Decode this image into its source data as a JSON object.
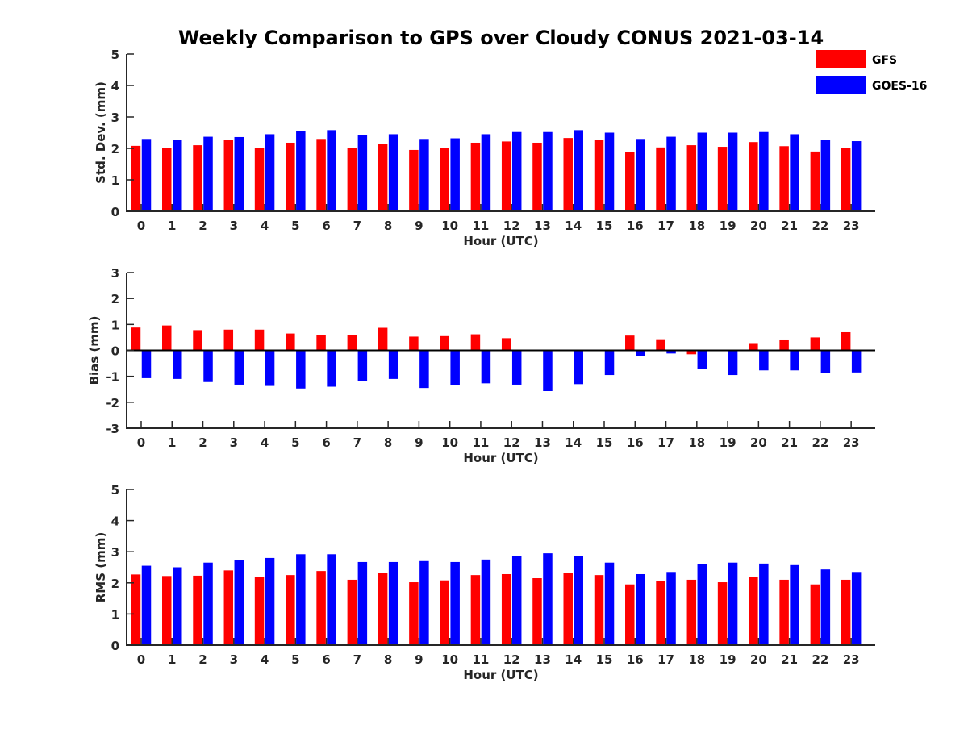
{
  "chart_data": {
    "type": "bar",
    "title": "Weekly Comparison to GPS over Cloudy CONUS 2021-03-14",
    "legend": {
      "placement": "top-right",
      "entries": [
        {
          "name": "GFS",
          "color": "#ff0000"
        },
        {
          "name": "GOES-16",
          "color": "#0000ff"
        }
      ]
    },
    "panels": [
      {
        "id": "std",
        "ylabel": "Std. Dev. (mm)",
        "xlabel": "Hour (UTC)",
        "ylim": [
          0,
          5
        ],
        "yticks": [
          "0",
          "1",
          "2",
          "3",
          "4",
          "5"
        ],
        "categories": [
          "0",
          "1",
          "2",
          "3",
          "4",
          "5",
          "6",
          "7",
          "8",
          "9",
          "10",
          "11",
          "12",
          "13",
          "14",
          "15",
          "16",
          "17",
          "18",
          "19",
          "20",
          "21",
          "22",
          "23"
        ],
        "series": [
          {
            "name": "GFS",
            "color": "#ff0000",
            "values": [
              2.08,
              2.02,
              2.1,
              2.28,
              2.02,
              2.18,
              2.3,
              2.02,
              2.15,
              1.95,
              2.02,
              2.18,
              2.22,
              2.18,
              2.33,
              2.27,
              1.88,
              2.03,
              2.1,
              2.05,
              2.2,
              2.07,
              1.9,
              2.0
            ]
          },
          {
            "name": "GOES-16",
            "color": "#0000ff",
            "values": [
              2.3,
              2.28,
              2.37,
              2.36,
              2.45,
              2.56,
              2.58,
              2.42,
              2.45,
              2.3,
              2.32,
              2.45,
              2.52,
              2.52,
              2.58,
              2.5,
              2.3,
              2.37,
              2.5,
              2.5,
              2.52,
              2.45,
              2.27,
              2.23
            ]
          }
        ]
      },
      {
        "id": "bias",
        "ylabel": "Bias (mm)",
        "xlabel": "Hour (UTC)",
        "ylim": [
          -3,
          3
        ],
        "yticks": [
          "-3",
          "-2",
          "-1",
          "0",
          "1",
          "2",
          "3"
        ],
        "categories": [
          "0",
          "1",
          "2",
          "3",
          "4",
          "5",
          "6",
          "7",
          "8",
          "9",
          "10",
          "11",
          "12",
          "13",
          "14",
          "15",
          "16",
          "17",
          "18",
          "19",
          "20",
          "21",
          "22",
          "23"
        ],
        "series": [
          {
            "name": "GFS",
            "color": "#ff0000",
            "values": [
              0.88,
              0.96,
              0.78,
              0.8,
              0.8,
              0.65,
              0.6,
              0.6,
              0.87,
              0.53,
              0.55,
              0.62,
              0.47,
              0.02,
              0.0,
              0.02,
              0.57,
              0.43,
              -0.15,
              -0.02,
              0.28,
              0.42,
              0.5,
              0.7
            ]
          },
          {
            "name": "GOES-16",
            "color": "#0000ff",
            "values": [
              -1.07,
              -1.1,
              -1.22,
              -1.32,
              -1.37,
              -1.47,
              -1.4,
              -1.17,
              -1.1,
              -1.45,
              -1.33,
              -1.27,
              -1.32,
              -1.57,
              -1.3,
              -0.95,
              -0.22,
              -0.12,
              -0.73,
              -0.95,
              -0.77,
              -0.77,
              -0.87,
              -0.85
            ]
          }
        ]
      },
      {
        "id": "rms",
        "ylabel": "RMS (mm)",
        "xlabel": "Hour (UTC)",
        "ylim": [
          0,
          5
        ],
        "yticks": [
          "0",
          "1",
          "2",
          "3",
          "4",
          "5"
        ],
        "categories": [
          "0",
          "1",
          "2",
          "3",
          "4",
          "5",
          "6",
          "7",
          "8",
          "9",
          "10",
          "11",
          "12",
          "13",
          "14",
          "15",
          "16",
          "17",
          "18",
          "19",
          "20",
          "21",
          "22",
          "23"
        ],
        "series": [
          {
            "name": "GFS",
            "color": "#ff0000",
            "values": [
              2.27,
              2.22,
              2.23,
              2.4,
              2.18,
              2.25,
              2.38,
              2.1,
              2.33,
              2.02,
              2.08,
              2.25,
              2.28,
              2.15,
              2.33,
              2.25,
              1.95,
              2.05,
              2.1,
              2.02,
              2.2,
              2.1,
              1.95,
              2.1
            ]
          },
          {
            "name": "GOES-16",
            "color": "#0000ff",
            "values": [
              2.55,
              2.5,
              2.65,
              2.72,
              2.8,
              2.92,
              2.92,
              2.67,
              2.67,
              2.7,
              2.67,
              2.75,
              2.85,
              2.95,
              2.87,
              2.65,
              2.28,
              2.35,
              2.6,
              2.65,
              2.62,
              2.57,
              2.43,
              2.35
            ]
          }
        ]
      }
    ]
  }
}
